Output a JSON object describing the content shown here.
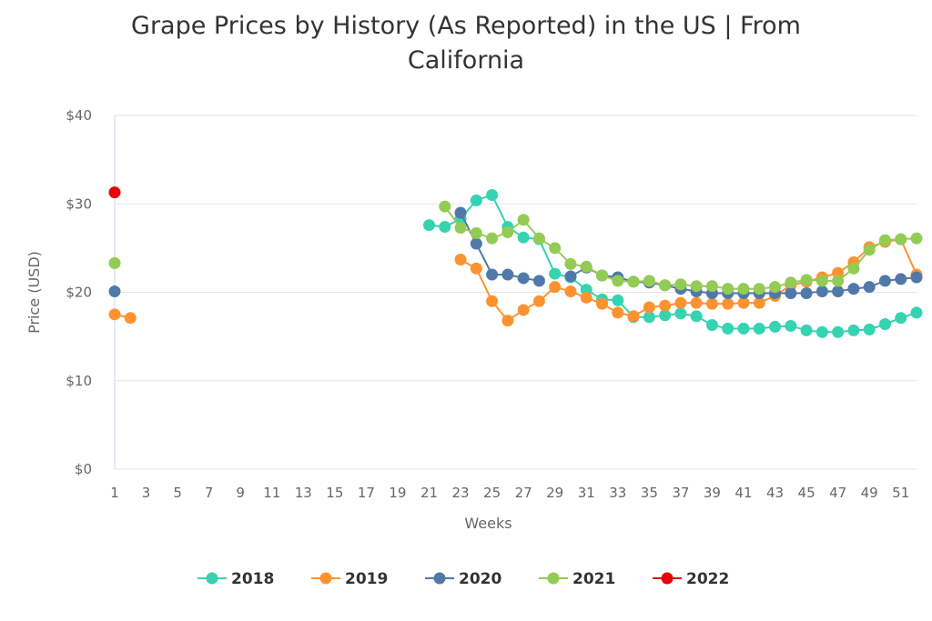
{
  "chart_data": {
    "type": "line",
    "title": "Grape Prices by History (As Reported) in the US | From California",
    "title_lines": [
      "Grape Prices by History (As Reported) in the US | From",
      "California"
    ],
    "xlabel": "Weeks",
    "ylabel": "Price (USD)",
    "xlim": [
      1,
      52
    ],
    "ylim": [
      0,
      40
    ],
    "x_ticks": [
      "1",
      "3",
      "5",
      "7",
      "9",
      "11",
      "13",
      "15",
      "17",
      "19",
      "21",
      "23",
      "25",
      "27",
      "29",
      "31",
      "33",
      "35",
      "37",
      "39",
      "41",
      "43",
      "45",
      "47",
      "49",
      "51"
    ],
    "y_ticks": [
      "$0",
      "$10",
      "$20",
      "$30",
      "$40"
    ],
    "grid": "horizontal",
    "legend": "bottom",
    "series": [
      {
        "name": "2018",
        "color": "#36d3b1",
        "points": [
          [
            21,
            27.6
          ],
          [
            22,
            27.4
          ],
          [
            23,
            28.3
          ],
          [
            24,
            30.4
          ],
          [
            25,
            31.0
          ],
          [
            26,
            27.4
          ],
          [
            27,
            26.2
          ],
          [
            28,
            26.0
          ],
          [
            29,
            22.1
          ],
          [
            30,
            21.7
          ],
          [
            31,
            20.3
          ],
          [
            32,
            19.2
          ],
          [
            33,
            19.1
          ],
          [
            34,
            17.2
          ],
          [
            35,
            17.2
          ],
          [
            36,
            17.4
          ],
          [
            37,
            17.6
          ],
          [
            38,
            17.3
          ],
          [
            39,
            16.3
          ],
          [
            40,
            15.9
          ],
          [
            41,
            15.9
          ],
          [
            42,
            15.9
          ],
          [
            43,
            16.1
          ],
          [
            44,
            16.2
          ],
          [
            45,
            15.7
          ],
          [
            46,
            15.5
          ],
          [
            47,
            15.5
          ],
          [
            48,
            15.7
          ],
          [
            49,
            15.8
          ],
          [
            50,
            16.4
          ],
          [
            51,
            17.1
          ],
          [
            52,
            17.7
          ]
        ]
      },
      {
        "name": "2019",
        "color": "#fd9330",
        "points": [
          [
            1,
            17.5
          ],
          [
            2,
            17.1
          ],
          [
            23,
            23.7
          ],
          [
            24,
            22.7
          ],
          [
            25,
            19.0
          ],
          [
            26,
            16.8
          ],
          [
            27,
            18.0
          ],
          [
            28,
            19.0
          ],
          [
            29,
            20.6
          ],
          [
            30,
            20.1
          ],
          [
            31,
            19.4
          ],
          [
            32,
            18.7
          ],
          [
            33,
            17.7
          ],
          [
            34,
            17.3
          ],
          [
            35,
            18.3
          ],
          [
            36,
            18.5
          ],
          [
            37,
            18.8
          ],
          [
            38,
            18.8
          ],
          [
            39,
            18.7
          ],
          [
            40,
            18.7
          ],
          [
            41,
            18.8
          ],
          [
            42,
            18.8
          ],
          [
            43,
            19.6
          ],
          [
            44,
            20.8
          ],
          [
            45,
            21.2
          ],
          [
            46,
            21.7
          ],
          [
            47,
            22.2
          ],
          [
            48,
            23.4
          ],
          [
            49,
            25.1
          ],
          [
            50,
            25.7
          ],
          [
            51,
            26.0
          ],
          [
            52,
            22.0
          ]
        ]
      },
      {
        "name": "2020",
        "color": "#5079a9",
        "points": [
          [
            1,
            20.1
          ],
          [
            23,
            29.0
          ],
          [
            24,
            25.5
          ],
          [
            25,
            22.0
          ],
          [
            26,
            22.0
          ],
          [
            27,
            21.6
          ],
          [
            28,
            21.3
          ],
          [
            30,
            21.8
          ],
          [
            31,
            22.8
          ],
          [
            32,
            21.9
          ],
          [
            33,
            21.7
          ],
          [
            34,
            21.2
          ],
          [
            35,
            21.1
          ],
          [
            36,
            20.8
          ],
          [
            37,
            20.4
          ],
          [
            38,
            20.1
          ],
          [
            39,
            19.9
          ],
          [
            40,
            19.9
          ],
          [
            41,
            19.9
          ],
          [
            42,
            19.9
          ],
          [
            43,
            19.9
          ],
          [
            44,
            19.9
          ],
          [
            45,
            19.9
          ],
          [
            46,
            20.1
          ],
          [
            47,
            20.1
          ],
          [
            48,
            20.4
          ],
          [
            49,
            20.6
          ],
          [
            50,
            21.3
          ],
          [
            51,
            21.5
          ],
          [
            52,
            21.7
          ]
        ]
      },
      {
        "name": "2021",
        "color": "#93cb55",
        "points": [
          [
            1,
            23.3
          ],
          [
            22,
            29.7
          ],
          [
            23,
            27.3
          ],
          [
            24,
            26.7
          ],
          [
            25,
            26.1
          ],
          [
            26,
            26.8
          ],
          [
            27,
            28.2
          ],
          [
            28,
            26.1
          ],
          [
            29,
            25.0
          ],
          [
            30,
            23.2
          ],
          [
            31,
            22.9
          ],
          [
            32,
            21.9
          ],
          [
            33,
            21.3
          ],
          [
            34,
            21.2
          ],
          [
            35,
            21.3
          ],
          [
            36,
            20.8
          ],
          [
            37,
            20.9
          ],
          [
            38,
            20.7
          ],
          [
            39,
            20.7
          ],
          [
            40,
            20.4
          ],
          [
            41,
            20.4
          ],
          [
            42,
            20.4
          ],
          [
            43,
            20.6
          ],
          [
            44,
            21.1
          ],
          [
            45,
            21.4
          ],
          [
            46,
            21.3
          ],
          [
            47,
            21.3
          ],
          [
            48,
            22.7
          ],
          [
            49,
            24.8
          ],
          [
            50,
            25.9
          ],
          [
            51,
            26.0
          ],
          [
            52,
            26.1
          ]
        ]
      },
      {
        "name": "2022",
        "color": "#e8000b",
        "points": [
          [
            1,
            31.3
          ]
        ]
      }
    ]
  }
}
